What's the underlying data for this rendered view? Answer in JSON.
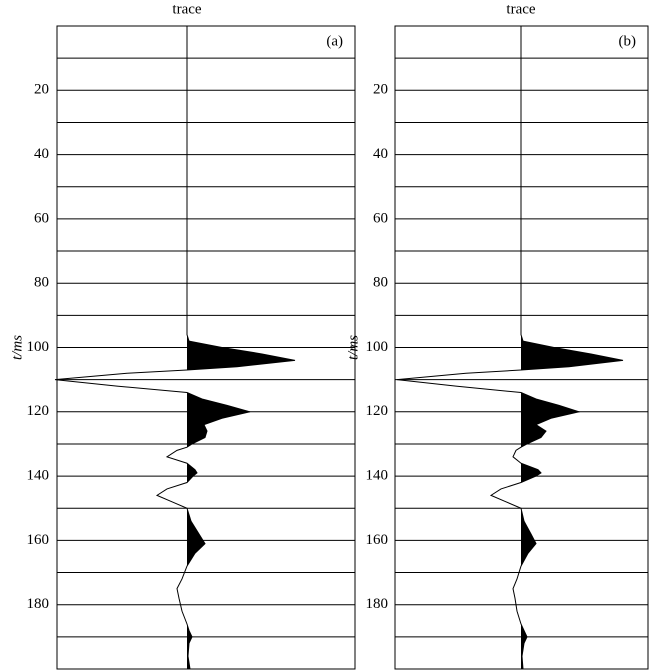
{
  "chart_data": [
    {
      "type": "wiggle",
      "title": "trace",
      "panel_label": "(a)",
      "ylabel": "t/ms",
      "ylim": [
        0,
        200
      ],
      "yticks": [
        20,
        40,
        60,
        80,
        100,
        120,
        140,
        160,
        180
      ],
      "minor_yticks": [
        0,
        10,
        30,
        50,
        70,
        90,
        110,
        130,
        150,
        170,
        190
      ],
      "xlim": [
        -1.3,
        1.68
      ],
      "color": "#000000",
      "fill_positive": true,
      "y": [
        0,
        96,
        98,
        100,
        102,
        104,
        106,
        107,
        108,
        110,
        112,
        114,
        116,
        118,
        120,
        122,
        124,
        126,
        128,
        130,
        131,
        132,
        134,
        136,
        138,
        139,
        140,
        142,
        144,
        146,
        148,
        150,
        154,
        158,
        161,
        164,
        168,
        172,
        175,
        178,
        182,
        186,
        188,
        190,
        192,
        196,
        200
      ],
      "values": [
        0,
        0,
        0.02,
        0.35,
        0.75,
        1.08,
        0.5,
        0,
        -0.6,
        -1.32,
        -0.7,
        0,
        0.15,
        0.4,
        0.63,
        0.35,
        0.17,
        0.2,
        0.18,
        0.05,
        0,
        -0.1,
        -0.2,
        0,
        0.08,
        0.1,
        0.06,
        0,
        -0.2,
        -0.3,
        -0.15,
        0,
        0.04,
        0.12,
        0.18,
        0.08,
        0,
        -0.05,
        -0.1,
        -0.08,
        -0.05,
        0,
        0.02,
        0.05,
        0.02,
        0.01,
        0.03
      ]
    },
    {
      "type": "wiggle",
      "title": "trace",
      "panel_label": "(b)",
      "ylabel": "t/ms",
      "ylim": [
        0,
        200
      ],
      "yticks": [
        20,
        40,
        60,
        80,
        100,
        120,
        140,
        160,
        180
      ],
      "minor_yticks": [
        0,
        10,
        30,
        50,
        70,
        90,
        110,
        130,
        150,
        170,
        190
      ],
      "xlim": [
        -1.26,
        1.27
      ],
      "color": "#000000",
      "fill_positive": true,
      "y": [
        0,
        96,
        98,
        100,
        102,
        104,
        106,
        107,
        108,
        110,
        112,
        114,
        116,
        118,
        120,
        122,
        124,
        126,
        128,
        130,
        131,
        132,
        134,
        136,
        138,
        139,
        140,
        142,
        144,
        146,
        148,
        150,
        154,
        158,
        161,
        164,
        168,
        172,
        175,
        178,
        182,
        186,
        188,
        190,
        192,
        196,
        200
      ],
      "values": [
        0,
        0,
        0.02,
        0.33,
        0.7,
        1.02,
        0.48,
        0,
        -0.55,
        -1.24,
        -0.65,
        0,
        0.15,
        0.38,
        0.58,
        0.3,
        0.15,
        0.25,
        0.2,
        0.06,
        0,
        -0.05,
        -0.08,
        0,
        0.17,
        0.2,
        0.15,
        0,
        -0.2,
        -0.3,
        -0.15,
        0,
        0.03,
        0.1,
        0.15,
        0.07,
        0,
        -0.04,
        -0.08,
        -0.06,
        -0.04,
        0,
        0.03,
        0.06,
        0.03,
        0.01,
        0.02
      ]
    }
  ]
}
